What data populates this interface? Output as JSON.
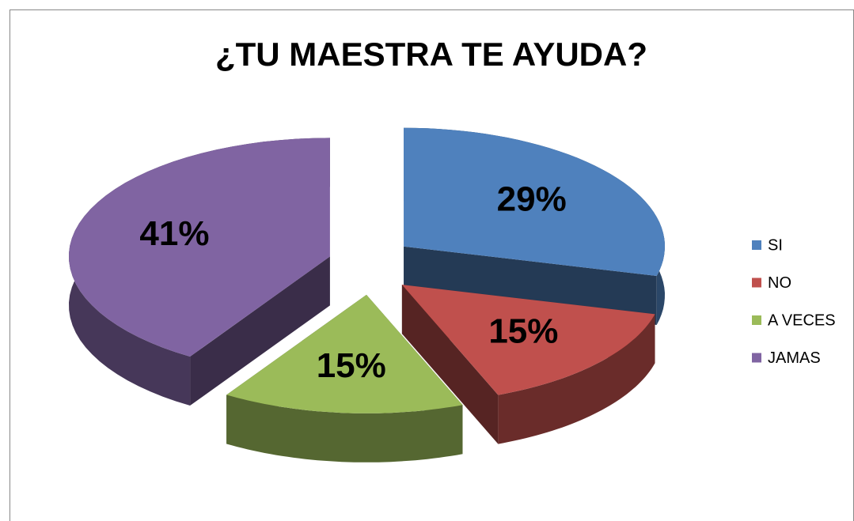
{
  "chart_data": {
    "type": "pie",
    "title": "¿TU MAESTRA TE AYUDA?",
    "categories": [
      "SI",
      "NO",
      "A VECES",
      "JAMAS"
    ],
    "values": [
      29,
      15,
      15,
      41
    ],
    "value_labels": [
      "29%",
      "15%",
      "15%",
      "41%"
    ],
    "colors": [
      "#4f81bd",
      "#c0504d",
      "#9bbb59",
      "#8064a2"
    ],
    "legend": "right"
  }
}
